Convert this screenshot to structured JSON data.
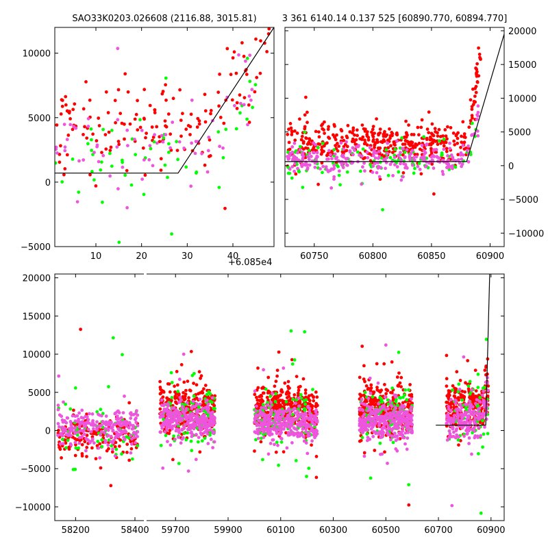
{
  "title_left": "SAO33K0203.026608 (2116.88, 3015.81)",
  "title_right": "3 361 6140.14 0.137 525 [60890.770, 60894.770]",
  "colors": {
    "red": "#ff0000",
    "green": "#00ff00",
    "pink": "#ee55dd",
    "line": "#000000"
  },
  "chart_data": [
    {
      "id": "top-left",
      "type": "scatter",
      "title": "SAO33K0203.026608 (2116.88, 3015.81)",
      "xlim": [
        1,
        49
      ],
      "ylim": [
        -5000,
        12000
      ],
      "xticks": [
        10,
        20,
        30,
        40
      ],
      "xtick_labels": [
        "10",
        "20",
        "30",
        "40"
      ],
      "yticks": [
        -5000,
        0,
        5000,
        10000
      ],
      "ytick_labels": [
        "−5000",
        "0",
        "5000",
        "10000"
      ],
      "model_line": {
        "x": [
          1,
          28,
          49
        ],
        "y": [
          700,
          700,
          12000
        ]
      },
      "series": [
        {
          "name": "red",
          "color": "#ff0000",
          "n": 160,
          "seed": 11,
          "x": [
            1,
            48
          ],
          "median": 4600,
          "spread": 1600,
          "outlier_frac": 0.08,
          "trend": {
            "start": 34,
            "end": 48,
            "to": 11500
          }
        },
        {
          "name": "green",
          "color": "#00ff00",
          "n": 55,
          "seed": 12,
          "x": [
            1,
            45
          ],
          "median": 1600,
          "spread": 1800,
          "outlier_frac": 0.1,
          "trend": {
            "start": 36,
            "end": 45,
            "to": 9000
          }
        },
        {
          "name": "pink",
          "color": "#ee55dd",
          "n": 70,
          "seed": 13,
          "x": [
            1,
            45
          ],
          "median": 2400,
          "spread": 1500,
          "outlier_frac": 0.1,
          "trend": {
            "start": 35,
            "end": 45,
            "to": 10500
          }
        }
      ]
    },
    {
      "id": "top-right",
      "type": "scatter",
      "title": "3 361 6140.14 0.137 525 [60890.770, 60894.770]",
      "xlim": [
        60725,
        60912
      ],
      "ylim": [
        -12000,
        20500
      ],
      "xticks": [
        60750,
        60800,
        60850,
        60900
      ],
      "xtick_labels": [
        "60750",
        "60800",
        "60850",
        "60900"
      ],
      "yticks": [
        -10000,
        -5000,
        0,
        5000,
        10000,
        15000,
        20000
      ],
      "ytick_labels": [
        "−10000",
        "−5000",
        "0",
        "5000",
        "10000",
        "15000",
        "20000"
      ],
      "offset_label": "+6.085e4",
      "model_line": {
        "x": [
          60725,
          60880,
          60912
        ],
        "y": [
          600,
          600,
          19500
        ]
      },
      "series": [
        {
          "name": "red",
          "color": "#ff0000",
          "n": 430,
          "seed": 21,
          "x": [
            60727,
            60892
          ],
          "median": 3400,
          "spread": 1500,
          "outlier_frac": 0.06,
          "trend": {
            "start": 60880,
            "end": 60892,
            "to": 20000
          }
        },
        {
          "name": "green",
          "color": "#00ff00",
          "n": 120,
          "seed": 22,
          "x": [
            60727,
            60890
          ],
          "median": 800,
          "spread": 1300,
          "outlier_frac": 0.06,
          "trend": {
            "start": 60882,
            "end": 60890,
            "to": 12000
          }
        },
        {
          "name": "pink",
          "color": "#ee55dd",
          "n": 260,
          "seed": 23,
          "x": [
            60727,
            60890
          ],
          "median": 900,
          "spread": 1000,
          "outlier_frac": 0.06,
          "trend": {
            "start": 60880,
            "end": 60890,
            "to": 9000
          }
        }
      ]
    },
    {
      "id": "bottom",
      "type": "scatter",
      "xlim": [
        58130,
        60950
      ],
      "ylim": [
        -11800,
        20500
      ],
      "broken_axis": {
        "left_range": [
          58130,
          58430
        ],
        "right_range": [
          59590,
          60950
        ]
      },
      "xticks": [
        58200,
        58400,
        59700,
        59900,
        60100,
        60300,
        60500,
        60700,
        60900
      ],
      "xtick_labels": [
        "58200",
        "58400",
        "59700",
        "59900",
        "60100",
        "60300",
        "60500",
        "60700",
        "60900"
      ],
      "yticks": [
        -10000,
        -5000,
        0,
        5000,
        10000,
        15000,
        20000
      ],
      "ytick_labels": [
        "−10000",
        "−5000",
        "0",
        "5000",
        "10000",
        "15000",
        "20000"
      ],
      "model_line": {
        "x": [
          60690,
          60880,
          60895
        ],
        "y": [
          700,
          700,
          20500
        ]
      },
      "seasons": [
        {
          "x": [
            58140,
            58410
          ],
          "red_median": -900,
          "red_spread": 1200,
          "pink_median": 300,
          "n_red": 160,
          "n_green": 60,
          "n_pink": 230
        },
        {
          "x": [
            59640,
            59850
          ],
          "red_median": 2600,
          "red_spread": 1500,
          "pink_median": 1200,
          "n_red": 330,
          "n_green": 90,
          "n_pink": 300
        },
        {
          "x": [
            60000,
            60240
          ],
          "red_median": 2900,
          "red_spread": 1600,
          "pink_median": 1000,
          "n_red": 360,
          "n_green": 110,
          "n_pink": 330
        },
        {
          "x": [
            60400,
            60600
          ],
          "red_median": 2800,
          "red_spread": 1600,
          "pink_median": 1300,
          "n_red": 340,
          "n_green": 110,
          "n_pink": 330
        },
        {
          "x": [
            60730,
            60890
          ],
          "red_median": 3100,
          "red_spread": 1600,
          "pink_median": 1500,
          "n_red": 240,
          "n_green": 60,
          "n_pink": 190
        }
      ]
    }
  ]
}
